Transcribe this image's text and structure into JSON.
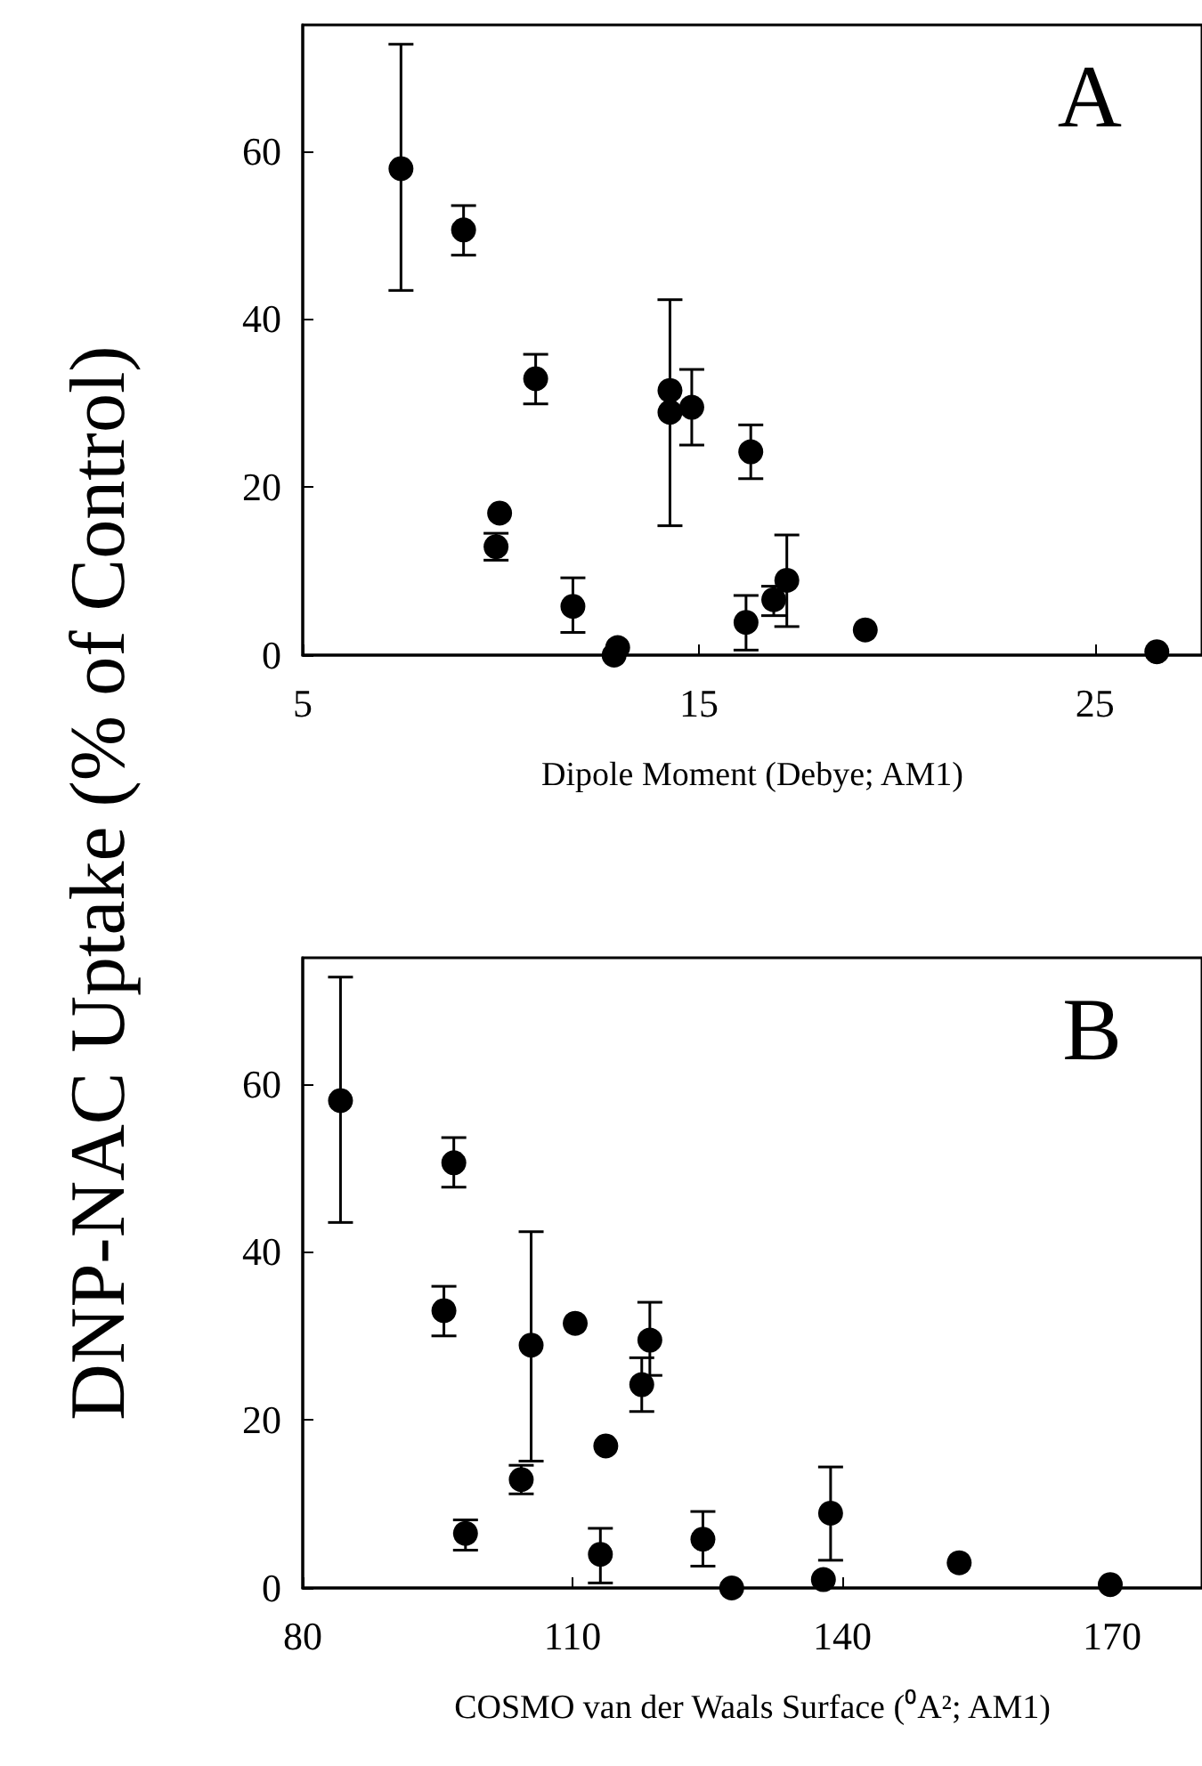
{
  "chart_data": [
    {
      "type": "scatter",
      "title": "A",
      "xlabel": "Dipole Moment (Debye; AM1)",
      "ylabel": "DNP-NAC Uptake (% of Control)",
      "x": [
        7.48,
        9.06,
        10.88,
        9.97,
        9.88,
        11.82,
        12.86,
        12.95,
        14.27,
        14.27,
        14.82,
        16.31,
        16.19,
        16.89,
        17.22,
        19.2,
        26.56
      ],
      "values": [
        57.9,
        50.6,
        32.9,
        16.9,
        12.9,
        5.8,
        0,
        0.9,
        31.5,
        28.9,
        29.5,
        24.2,
        3.9,
        6.6,
        8.9,
        3.0,
        0.4
      ],
      "errors": [
        [
          43.4,
          72.7
        ],
        [
          47.6,
          53.5
        ],
        [
          29.9,
          35.8
        ],
        null,
        [
          11.3,
          14.5
        ],
        [
          2.7,
          9.2
        ],
        null,
        null,
        null,
        [
          15.4,
          42.3
        ],
        [
          25.0,
          34.0
        ],
        [
          21.0,
          27.4
        ],
        [
          0.6,
          7.1
        ],
        [
          4.7,
          8.2
        ],
        [
          3.4,
          14.3
        ],
        null,
        null
      ],
      "color": "#000000",
      "marker": "circle",
      "grid": false,
      "xlim": [
        5,
        27.7
      ],
      "xticks": [
        5,
        15,
        25
      ],
      "ylim": [
        0,
        75
      ],
      "yticks": [
        0,
        20,
        40,
        60
      ]
    },
    {
      "type": "scatter",
      "title": "B",
      "xlabel": "COSMO van der Waals Surface (⁰A²; AM1)",
      "x": [
        84.2,
        96.8,
        95.7,
        98.1,
        105.4,
        104.3,
        110.3,
        113.1,
        113.7,
        117.7,
        118.6,
        124.5,
        127.7,
        137.9,
        138.7,
        153.0,
        169.8
      ],
      "values": [
        58.0,
        50.6,
        33.0,
        6.5,
        28.9,
        12.9,
        31.5,
        4.0,
        16.9,
        24.2,
        29.5,
        5.8,
        0,
        1.0,
        8.9,
        3.0,
        0.4
      ],
      "errors": [
        [
          43.5,
          72.7
        ],
        [
          47.7,
          53.6
        ],
        [
          30.0,
          35.9
        ],
        [
          4.5,
          8.1
        ],
        [
          15.1,
          42.4
        ],
        [
          11.2,
          14.6
        ],
        null,
        [
          0.6,
          7.1
        ],
        null,
        [
          21.0,
          27.4
        ],
        [
          25.3,
          34.0
        ],
        [
          2.6,
          9.1
        ],
        null,
        null,
        [
          3.3,
          14.4
        ],
        null,
        null
      ],
      "color": "#000000",
      "marker": "circle",
      "grid": false,
      "xlim": [
        80,
        180
      ],
      "xticks": [
        80,
        110,
        140,
        170
      ],
      "ylim": [
        0,
        75
      ],
      "yticks": [
        0,
        20,
        40,
        60
      ]
    }
  ]
}
